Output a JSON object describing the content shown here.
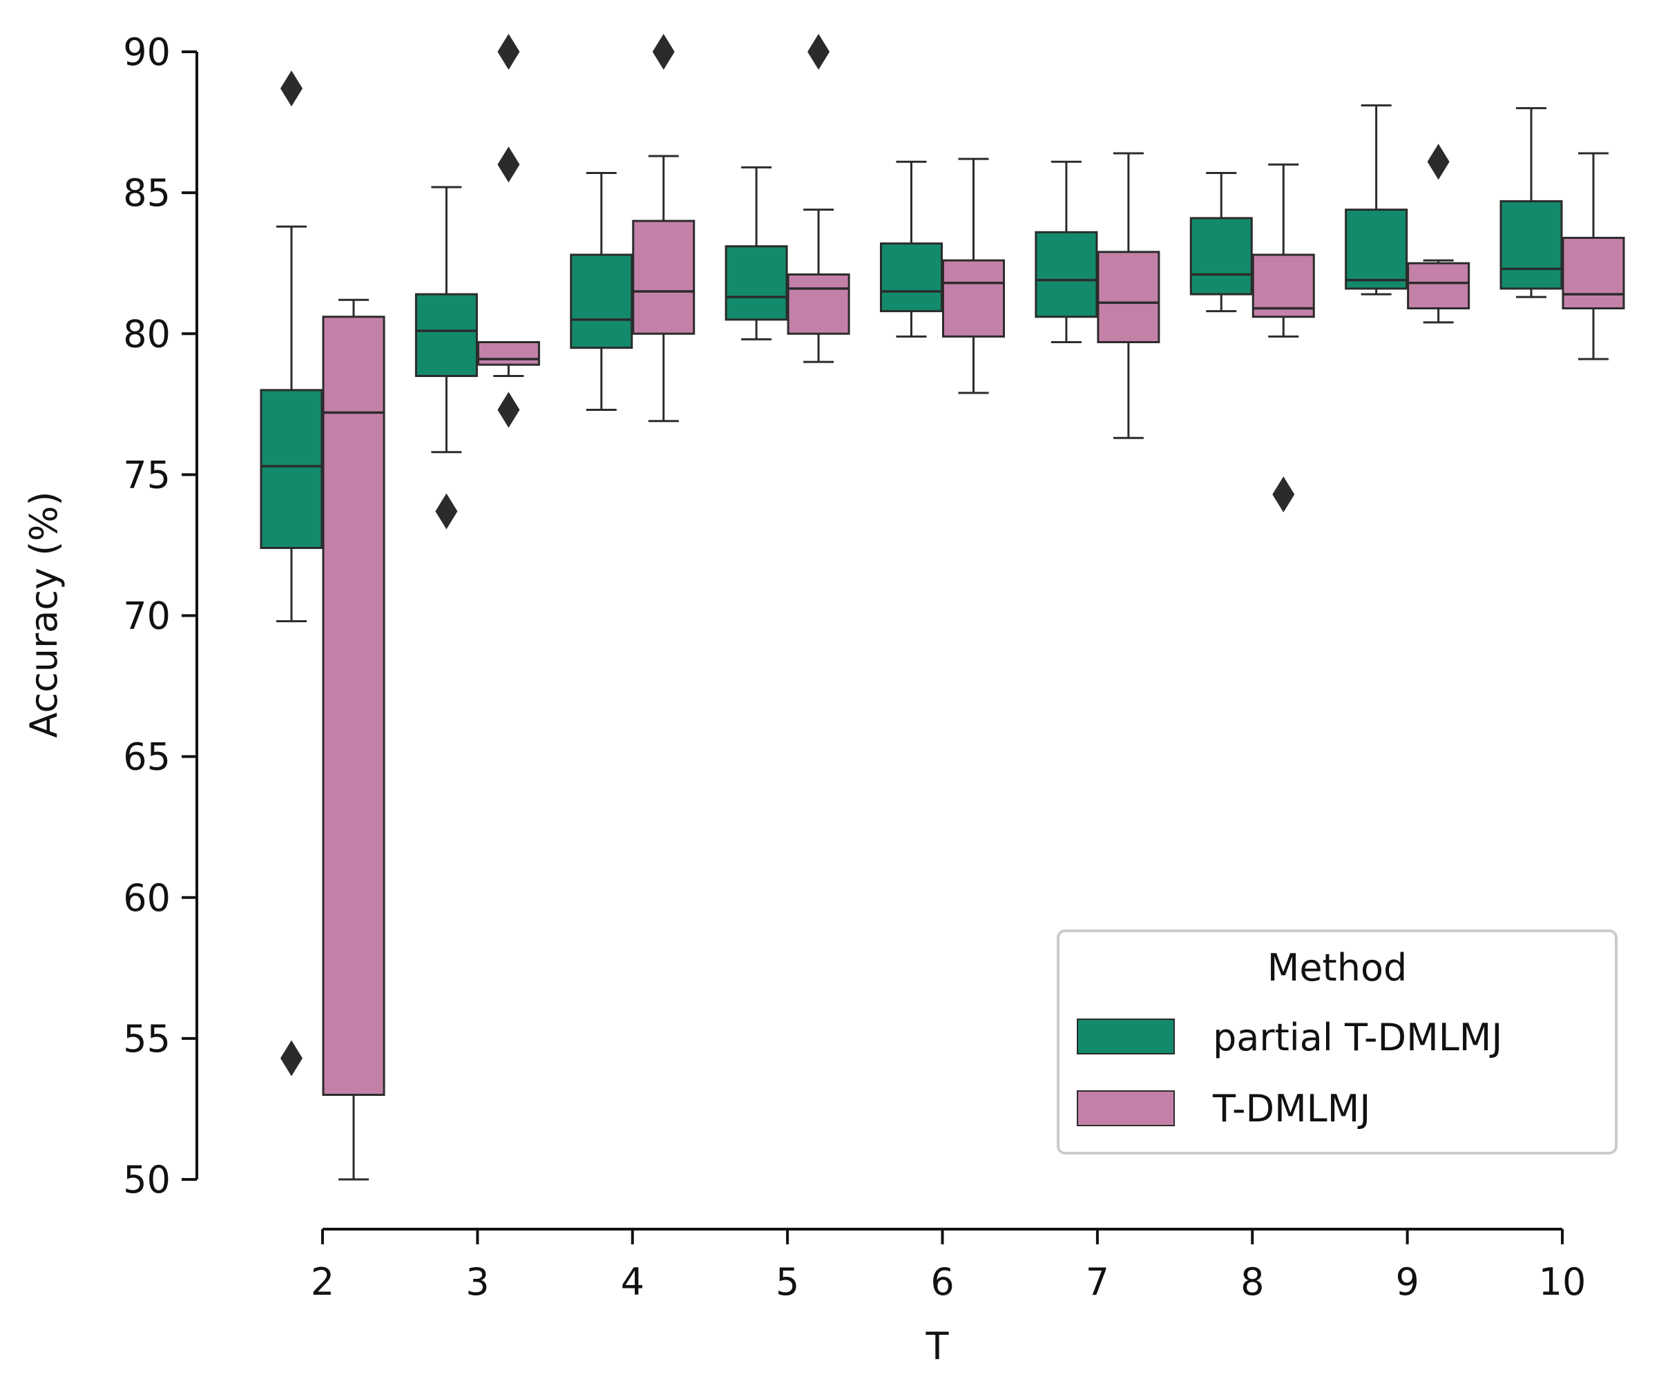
{
  "chart_data": {
    "type": "box",
    "xlabel": "T",
    "ylabel": "Accuracy (%)",
    "categories": [
      "2",
      "3",
      "4",
      "5",
      "6",
      "7",
      "8",
      "9",
      "10"
    ],
    "ylim": [
      50,
      90
    ],
    "yticks": [
      50,
      55,
      60,
      65,
      70,
      75,
      80,
      85,
      90
    ],
    "grid": false,
    "legend": {
      "title": "Method",
      "position": "lower-right"
    },
    "series": [
      {
        "name": "partial T-DMLMJ",
        "color": "#138a6b",
        "boxes": [
          {
            "whisker_low": 69.8,
            "q1": 72.4,
            "median": 75.3,
            "q3": 78.0,
            "whisker_high": 83.8,
            "outliers": [
              88.7,
              54.3
            ]
          },
          {
            "whisker_low": 75.8,
            "q1": 78.5,
            "median": 80.1,
            "q3": 81.4,
            "whisker_high": 85.2,
            "outliers": [
              73.7
            ]
          },
          {
            "whisker_low": 77.3,
            "q1": 79.5,
            "median": 80.5,
            "q3": 82.8,
            "whisker_high": 85.7,
            "outliers": []
          },
          {
            "whisker_low": 79.8,
            "q1": 80.5,
            "median": 81.3,
            "q3": 83.1,
            "whisker_high": 85.9,
            "outliers": []
          },
          {
            "whisker_low": 79.9,
            "q1": 80.8,
            "median": 81.5,
            "q3": 83.2,
            "whisker_high": 86.1,
            "outliers": []
          },
          {
            "whisker_low": 79.7,
            "q1": 80.6,
            "median": 81.9,
            "q3": 83.6,
            "whisker_high": 86.1,
            "outliers": []
          },
          {
            "whisker_low": 80.8,
            "q1": 81.4,
            "median": 82.1,
            "q3": 84.1,
            "whisker_high": 85.7,
            "outliers": []
          },
          {
            "whisker_low": 81.4,
            "q1": 81.6,
            "median": 81.9,
            "q3": 84.4,
            "whisker_high": 88.1,
            "outliers": []
          },
          {
            "whisker_low": 81.3,
            "q1": 81.6,
            "median": 82.3,
            "q3": 84.7,
            "whisker_high": 88.0,
            "outliers": []
          }
        ]
      },
      {
        "name": "T-DMLMJ",
        "color": "#c481a8",
        "boxes": [
          {
            "whisker_low": 50.0,
            "q1": 53.0,
            "median": 77.2,
            "q3": 80.6,
            "whisker_high": 81.2,
            "outliers": []
          },
          {
            "whisker_low": 78.5,
            "q1": 78.9,
            "median": 79.1,
            "q3": 79.7,
            "whisker_high": 79.7,
            "outliers": [
              90.0,
              86.0,
              77.3
            ]
          },
          {
            "whisker_low": 76.9,
            "q1": 80.0,
            "median": 81.5,
            "q3": 84.0,
            "whisker_high": 86.3,
            "outliers": [
              90.0
            ]
          },
          {
            "whisker_low": 79.0,
            "q1": 80.0,
            "median": 81.6,
            "q3": 82.1,
            "whisker_high": 84.4,
            "outliers": [
              90.0
            ]
          },
          {
            "whisker_low": 77.9,
            "q1": 79.9,
            "median": 81.8,
            "q3": 82.6,
            "whisker_high": 86.2,
            "outliers": []
          },
          {
            "whisker_low": 76.3,
            "q1": 79.7,
            "median": 81.1,
            "q3": 82.9,
            "whisker_high": 86.4,
            "outliers": []
          },
          {
            "whisker_low": 79.9,
            "q1": 80.6,
            "median": 80.9,
            "q3": 82.8,
            "whisker_high": 86.0,
            "outliers": [
              74.3
            ]
          },
          {
            "whisker_low": 80.4,
            "q1": 80.9,
            "median": 81.8,
            "q3": 82.5,
            "whisker_high": 82.6,
            "outliers": [
              86.1
            ]
          },
          {
            "whisker_low": 79.1,
            "q1": 80.9,
            "median": 81.4,
            "q3": 83.4,
            "whisker_high": 86.4,
            "outliers": []
          }
        ]
      }
    ]
  }
}
